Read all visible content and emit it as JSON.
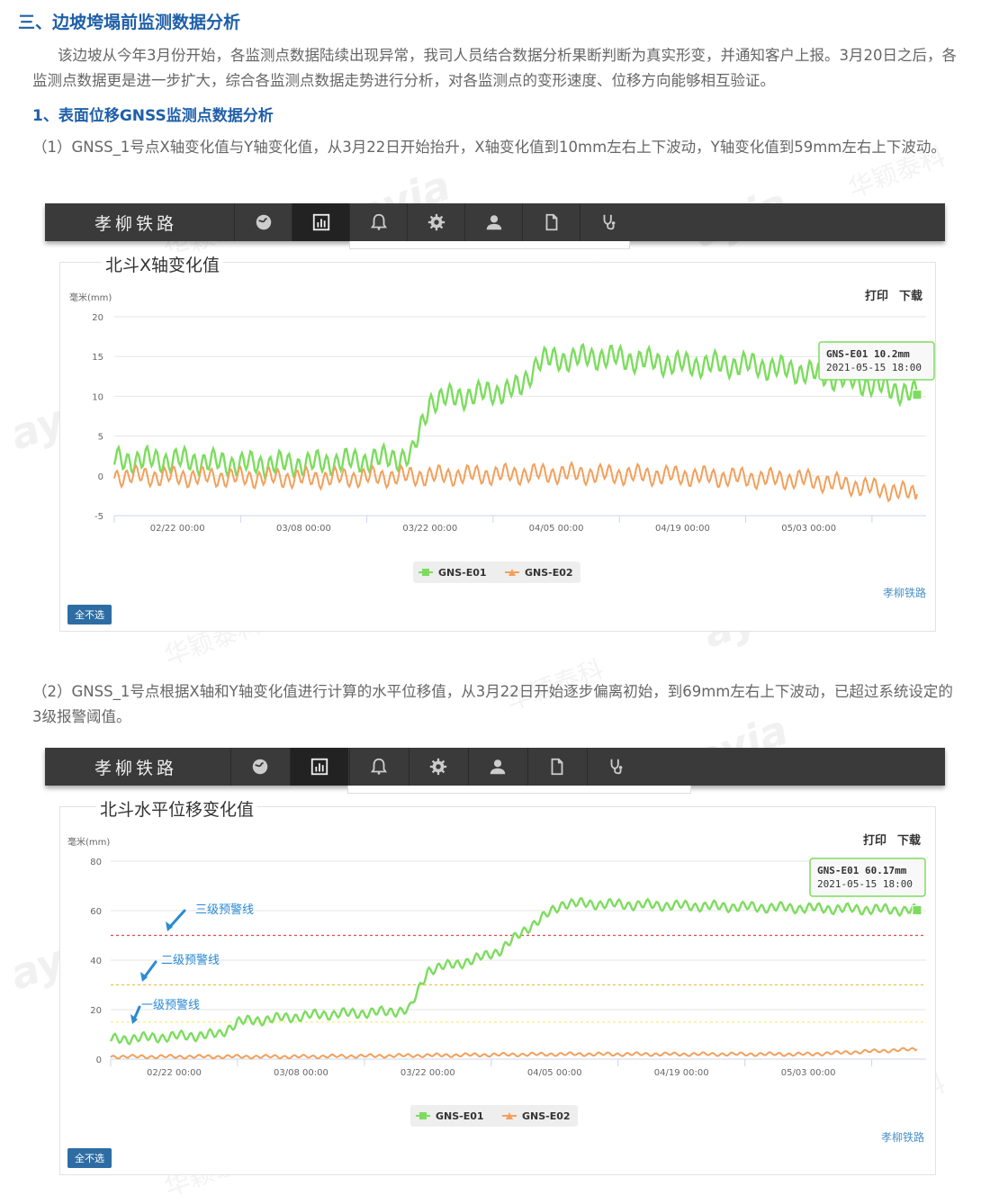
{
  "article": {
    "section_title": "三、边坡垮塌前监测数据分析",
    "intro": "该边坡从今年3月份开始，各监测点数据陆续出现异常，我司人员结合数据分析果断判断为真实形变，并通知客户上报。3月20日之后，各监测点数据更是进一步扩大，综合各监测点数据走势进行分析，对各监测点的变形速度、位移方向能够相互验证。",
    "sub_title": "1、表面位移GNSS监测点数据分析",
    "para1": "（1）GNSS_1号点X轴变化值与Y轴变化值，从3月22日开始抬升，X轴变化值到10mm左右上下波动，Y轴变化值到59mm左右上下波动。",
    "para2": "（2）GNSS_1号点根据X轴和Y轴变化值进行计算的水平位移值，从3月22日开始逐步偏离初始，到69mm左右上下波动，已超过系统设定的3级报警阈值。"
  },
  "nav": {
    "title": "孝柳铁路",
    "icons": [
      "globe-icon",
      "chart-icon",
      "bell-icon",
      "gear-icon",
      "user-icon",
      "document-icon",
      "stethoscope-icon"
    ],
    "active_icon": "chart-icon"
  },
  "watermark": {
    "brand": "ayia",
    "cn": "华颖泰科"
  },
  "charts": [
    {
      "panel_title": "北斗X轴变化值",
      "unit": "毫米(mm)",
      "print_label": "打印",
      "download_label": "下载",
      "deselect_label": "全不选",
      "credit": "孝柳铁路",
      "tooltip_line1": "GNS-E01 10.2mm",
      "tooltip_line2": "2021-05-15 18:00",
      "legend": [
        "GNS-E01",
        "GNS-E02"
      ]
    },
    {
      "panel_title": "北斗水平位移变化值",
      "unit": "毫米(mm)",
      "print_label": "打印",
      "download_label": "下载",
      "deselect_label": "全不选",
      "credit": "孝柳铁路",
      "tooltip_line1": "GNS-E01 60.17mm",
      "tooltip_line2": "2021-05-15 18:00",
      "legend": [
        "GNS-E01",
        "GNS-E02"
      ],
      "warning_lines": [
        "三级预警线",
        "二级预警线",
        "一级预警线"
      ]
    }
  ],
  "chart_data": [
    {
      "type": "line",
      "title": "北斗X轴变化值",
      "ylabel": "毫米(mm)",
      "ylim": [
        -5,
        20
      ],
      "yticks": [
        20,
        15,
        10,
        5,
        0,
        -5
      ],
      "xlim": [
        "2021-02-15",
        "2021-05-16"
      ],
      "xticks": [
        "02/22 00:00",
        "03/08 00:00",
        "03/22 00:00",
        "04/05 00:00",
        "04/19 00:00",
        "05/03 00:00"
      ],
      "grid": true,
      "legend_position": "bottom-center",
      "colors": {
        "GNS-E01": "#7ddc5f",
        "GNS-E02": "#f2a05c"
      },
      "series": [
        {
          "name": "GNS-E01",
          "x": [
            "2021-02-15",
            "2021-02-22",
            "2021-03-01",
            "2021-03-08",
            "2021-03-15",
            "2021-03-20",
            "2021-03-22",
            "2021-03-29",
            "2021-04-01",
            "2021-04-03",
            "2021-04-10",
            "2021-04-19",
            "2021-04-26",
            "2021-05-03",
            "2021-05-10",
            "2021-05-15"
          ],
          "values": [
            2,
            2,
            1.5,
            1.5,
            2,
            2.5,
            9.5,
            10.5,
            11,
            14.5,
            15,
            14,
            14,
            13,
            11.5,
            10.2
          ],
          "amplitude": 1.5
        },
        {
          "name": "GNS-E02",
          "x": [
            "2021-02-15",
            "2021-03-08",
            "2021-04-05",
            "2021-04-19",
            "2021-05-03",
            "2021-05-15"
          ],
          "values": [
            0,
            -0.3,
            0.3,
            0,
            -0.5,
            -2.3
          ],
          "amplitude": 1.2
        }
      ]
    },
    {
      "type": "line",
      "title": "北斗水平位移变化值",
      "ylabel": "毫米(mm)",
      "ylim": [
        0,
        80
      ],
      "yticks": [
        80,
        60,
        40,
        20,
        0
      ],
      "xlim": [
        "2021-02-15",
        "2021-05-16"
      ],
      "xticks": [
        "02/22 00:00",
        "03/08 00:00",
        "03/22 00:00",
        "04/05 00:00",
        "04/19 00:00",
        "05/03 00:00"
      ],
      "grid": true,
      "legend_position": "bottom-center",
      "colors": {
        "GNS-E01": "#7ddc5f",
        "GNS-E02": "#f2a05c",
        "三级预警线": "#e04b4b",
        "二级预警线": "#f0c040",
        "一级预警线": "#f5ef7a"
      },
      "thresholds": [
        {
          "name": "三级预警线",
          "value": 50
        },
        {
          "name": "二级预警线",
          "value": 30
        },
        {
          "name": "一级预警线",
          "value": 15
        }
      ],
      "series": [
        {
          "name": "GNS-E01",
          "x": [
            "2021-02-15",
            "2021-02-27",
            "2021-03-01",
            "2021-03-10",
            "2021-03-17",
            "2021-03-20",
            "2021-03-22",
            "2021-03-27",
            "2021-03-30",
            "2021-04-02",
            "2021-04-06",
            "2021-04-19",
            "2021-05-03",
            "2021-05-15"
          ],
          "values": [
            8,
            10,
            15,
            18,
            19,
            20,
            36,
            40,
            44,
            53,
            63,
            62,
            61,
            60.17
          ],
          "amplitude": 2
        },
        {
          "name": "GNS-E02",
          "x": [
            "2021-02-15",
            "2021-03-08",
            "2021-04-05",
            "2021-05-03",
            "2021-05-15"
          ],
          "values": [
            1,
            1,
            2,
            2,
            4
          ],
          "amplitude": 0.7
        }
      ]
    }
  ]
}
